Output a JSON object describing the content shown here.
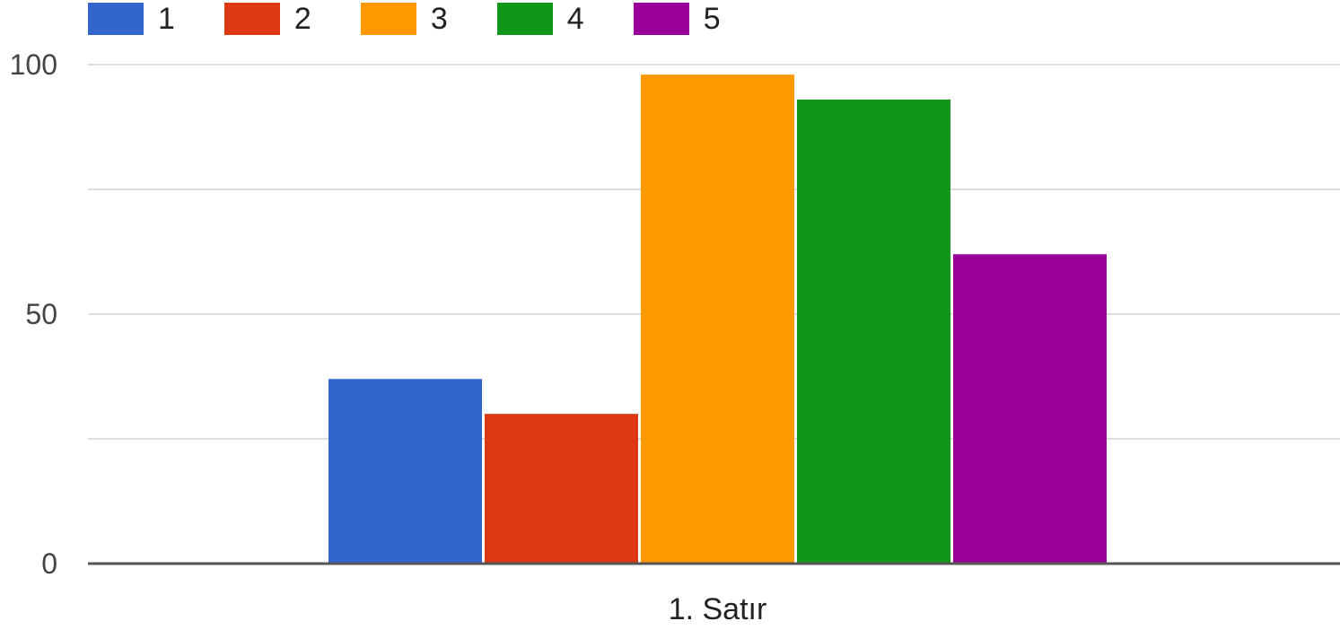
{
  "chart_data": {
    "type": "bar",
    "categories": [
      "1. Satır"
    ],
    "series": [
      {
        "name": "1",
        "color": "#3366cc",
        "values": [
          37
        ]
      },
      {
        "name": "2",
        "color": "#dc3912",
        "values": [
          30
        ]
      },
      {
        "name": "3",
        "color": "#ff9900",
        "values": [
          98
        ]
      },
      {
        "name": "4",
        "color": "#109618",
        "values": [
          93
        ]
      },
      {
        "name": "5",
        "color": "#990099",
        "values": [
          62
        ]
      }
    ],
    "ylim": [
      0,
      100
    ],
    "yticks": [
      0,
      50,
      100
    ],
    "grid": true,
    "legend_position": "top-left",
    "title": "",
    "xlabel": "",
    "ylabel": ""
  }
}
